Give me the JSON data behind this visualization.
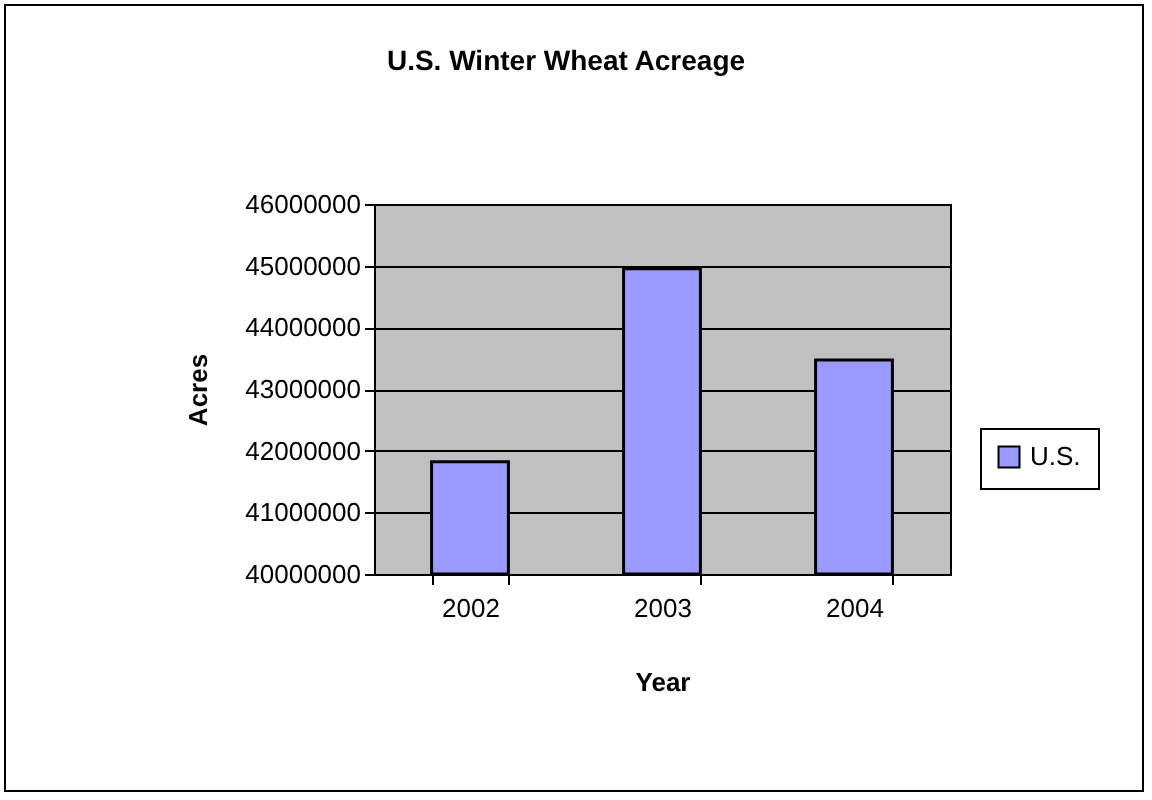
{
  "chart_data": {
    "type": "bar",
    "title": "U.S. Winter Wheat Acreage",
    "xlabel": "Year",
    "ylabel": "Acres",
    "categories": [
      "2002",
      "2003",
      "2004"
    ],
    "series": [
      {
        "name": "U.S.",
        "color": "#9999ff",
        "values": [
          41820000,
          44950000,
          43470000
        ]
      }
    ],
    "ylim": [
      40000000,
      46000000
    ],
    "yticks": [
      40000000,
      41000000,
      42000000,
      43000000,
      44000000,
      45000000,
      46000000
    ],
    "grid": "y",
    "legend": "right"
  }
}
